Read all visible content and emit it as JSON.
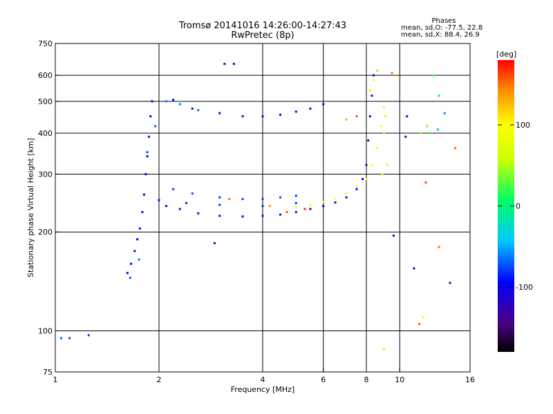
{
  "chart_data": {
    "type": "scatter",
    "title": "Tromsø 20141016 14:26:00-14:27:43",
    "subtitle": "RwPretec (8p)",
    "xlabel": "Frequency [MHz]",
    "ylabel": "Stationary phase Virtual Height [km]",
    "xscale": "log",
    "yscale": "log",
    "xlim": [
      1,
      16
    ],
    "ylim": [
      75,
      750
    ],
    "xticks": [
      1,
      2,
      4,
      6,
      8,
      10,
      16
    ],
    "yticks": [
      75,
      100,
      200,
      300,
      400,
      500,
      600,
      750
    ],
    "grid_x": [
      2,
      4,
      6,
      8,
      10
    ],
    "grid_y": [
      100,
      200,
      300,
      400,
      500,
      600
    ],
    "grid": true,
    "legend_position": "top-right",
    "phase_info": {
      "heading": "Phases",
      "line_o": "mean, sd,O: -77.5, 22.8",
      "line_x": "mean, sd,X:  88.4, 26.9"
    },
    "colorbar": {
      "unit": "[deg]",
      "range": [
        -180,
        180
      ],
      "ticks": [
        -100,
        0,
        100
      ]
    },
    "traces": [
      {
        "component": "O",
        "points": [
          [
            1.62,
            150,
            -105
          ],
          [
            1.66,
            160,
            -100
          ],
          [
            1.7,
            175,
            -110
          ],
          [
            1.73,
            190,
            -95
          ],
          [
            1.76,
            205,
            -105
          ],
          [
            1.79,
            230,
            -100
          ],
          [
            1.81,
            260,
            -110
          ],
          [
            1.83,
            300,
            -105
          ],
          [
            1.85,
            340,
            -100
          ],
          [
            1.87,
            390,
            -110
          ],
          [
            1.89,
            450,
            -105
          ],
          [
            1.91,
            500,
            -100
          ],
          [
            2.0,
            250,
            -100
          ],
          [
            2.1,
            240,
            -110
          ],
          [
            2.3,
            235,
            -100
          ],
          [
            2.6,
            228,
            -105
          ],
          [
            3.0,
            224,
            -110
          ],
          [
            3.5,
            223,
            -100
          ],
          [
            4.0,
            224,
            -105
          ],
          [
            4.5,
            226,
            -100
          ],
          [
            5.0,
            230,
            -110
          ],
          [
            5.5,
            235,
            -105
          ],
          [
            6.0,
            240,
            -100
          ],
          [
            6.5,
            246,
            -110
          ],
          [
            7.0,
            255,
            -105
          ],
          [
            7.5,
            270,
            -100
          ],
          [
            7.8,
            290,
            -110
          ],
          [
            8.0,
            320,
            -105
          ],
          [
            8.1,
            380,
            -100
          ],
          [
            8.2,
            450,
            -110
          ],
          [
            8.3,
            520,
            -105
          ],
          [
            8.4,
            600,
            -100
          ],
          [
            2.2,
            505,
            -100
          ],
          [
            2.5,
            475,
            -110
          ],
          [
            3.0,
            460,
            -105
          ],
          [
            3.5,
            450,
            -100
          ],
          [
            4.0,
            450,
            -110
          ],
          [
            4.5,
            455,
            -105
          ],
          [
            5.0,
            465,
            -100
          ],
          [
            5.5,
            475,
            -105
          ],
          [
            6.0,
            490,
            -110
          ],
          [
            3.1,
            650,
            -110
          ],
          [
            3.3,
            650,
            -105
          ],
          [
            10.4,
            390,
            -110
          ],
          [
            10.5,
            450,
            -100
          ]
        ]
      },
      {
        "component": "O-diffuse",
        "points": [
          [
            2.2,
            270,
            -80
          ],
          [
            2.5,
            262,
            -75
          ],
          [
            3.0,
            255,
            -80
          ],
          [
            3.5,
            252,
            -75
          ],
          [
            4.0,
            252,
            -80
          ],
          [
            4.5,
            255,
            -75
          ],
          [
            5.0,
            258,
            -80
          ],
          [
            2.4,
            245,
            -85
          ],
          [
            3.0,
            242,
            -80
          ],
          [
            4.0,
            240,
            -85
          ],
          [
            5.0,
            245,
            -80
          ],
          [
            2.1,
            500,
            -60
          ],
          [
            2.3,
            490,
            -60
          ],
          [
            2.6,
            470,
            -65
          ],
          [
            1.65,
            145,
            -70
          ],
          [
            1.75,
            165,
            -65
          ],
          [
            1.85,
            350,
            -75
          ],
          [
            1.95,
            420,
            -70
          ],
          [
            1.04,
            95,
            -70
          ],
          [
            1.1,
            95,
            -75
          ],
          [
            1.25,
            97,
            -80
          ]
        ]
      },
      {
        "component": "X",
        "points": [
          [
            5.0,
            238,
            100
          ],
          [
            5.5,
            242,
            95
          ],
          [
            6.0,
            247,
            90
          ],
          [
            6.5,
            253,
            100
          ],
          [
            7.0,
            262,
            95
          ],
          [
            7.5,
            275,
            100
          ],
          [
            8.0,
            290,
            90
          ],
          [
            8.3,
            320,
            100
          ],
          [
            8.6,
            360,
            95
          ],
          [
            8.8,
            420,
            100
          ],
          [
            9.0,
            480,
            90
          ],
          [
            8.9,
            300,
            80
          ],
          [
            9.2,
            320,
            60
          ],
          [
            9.0,
            400,
            110
          ],
          [
            9.1,
            450,
            70
          ],
          [
            8.2,
            540,
            110
          ],
          [
            8.4,
            580,
            100
          ],
          [
            8.6,
            620,
            120
          ]
        ]
      },
      {
        "component": "scattered",
        "points": [
          [
            7.0,
            440,
            130
          ],
          [
            7.5,
            450,
            160
          ],
          [
            9.5,
            610,
            150
          ],
          [
            10.0,
            590,
            140
          ],
          [
            12.5,
            600,
            20
          ],
          [
            13.0,
            520,
            -20
          ],
          [
            14.5,
            360,
            150
          ],
          [
            12.0,
            420,
            40
          ],
          [
            12.3,
            400,
            20
          ],
          [
            13.5,
            460,
            -60
          ],
          [
            11.5,
            400,
            50
          ],
          [
            11.9,
            283,
            160
          ],
          [
            12.9,
            410,
            -50
          ],
          [
            11.0,
            155,
            -120
          ],
          [
            11.4,
            105,
            155
          ],
          [
            11.7,
            110,
            100
          ],
          [
            14.0,
            140,
            -130
          ],
          [
            13.0,
            180,
            150
          ],
          [
            9.6,
            195,
            -90
          ],
          [
            9.0,
            88,
            110
          ],
          [
            2.9,
            185,
            -130
          ],
          [
            3.2,
            252,
            150
          ],
          [
            4.7,
            230,
            160
          ],
          [
            5.3,
            235,
            170
          ],
          [
            4.2,
            240,
            140
          ]
        ]
      }
    ]
  }
}
